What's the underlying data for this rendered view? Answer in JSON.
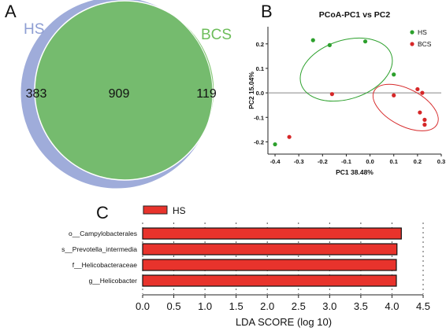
{
  "panels": {
    "a": {
      "letter": "A"
    },
    "b": {
      "letter": "B"
    },
    "c": {
      "letter": "C"
    }
  },
  "chart_data": [
    {
      "type": "venn",
      "sets": [
        {
          "name": "HS",
          "color": "#8e9ed3"
        },
        {
          "name": "BCS",
          "color": "#6dbd5a"
        }
      ],
      "regions": {
        "HS_only": 383,
        "both": 909,
        "BCS_only": 119
      }
    },
    {
      "type": "scatter",
      "title": "PCoA-PC1 vs PC2",
      "xlabel": "PC1 38.48%",
      "ylabel": "PC2 15.04%",
      "xlim": [
        -0.43,
        0.3
      ],
      "ylim": [
        -0.25,
        0.27
      ],
      "xticks": [
        -0.4,
        -0.3,
        -0.2,
        -0.1,
        0.0,
        0.1,
        0.2,
        0.3
      ],
      "xtick_labels": [
        "-0.4",
        "-0.3",
        "-0.2",
        "-0.1",
        "0.0",
        "0.1",
        "0.2",
        "0.3"
      ],
      "yticks": [
        0.2,
        0.1,
        0.0,
        -0.1,
        -0.2
      ],
      "ytick_labels": [
        "0.2",
        "0.1",
        "0.0",
        "-0.1",
        "-0.2"
      ],
      "legend_position": "top-right",
      "zero_line": true,
      "series": [
        {
          "name": "HS",
          "color": "#2ca02c",
          "x": [
            -0.4,
            -0.24,
            -0.17,
            -0.02,
            0.1
          ],
          "y": [
            -0.21,
            0.215,
            0.195,
            0.21,
            0.075
          ]
        },
        {
          "name": "BCS",
          "color": "#d62728",
          "x": [
            -0.34,
            -0.16,
            0.1,
            0.2,
            0.22,
            0.21,
            0.23,
            0.23
          ],
          "y": [
            -0.18,
            -0.005,
            -0.01,
            0.015,
            0.0,
            -0.08,
            -0.11,
            -0.13
          ]
        }
      ],
      "ellipses": [
        {
          "series": "HS",
          "cx": -0.1,
          "cy": 0.095,
          "rx": 0.2,
          "ry": 0.12,
          "rotation_deg": 18
        },
        {
          "series": "BCS",
          "cx": 0.15,
          "cy": -0.06,
          "rx": 0.15,
          "ry": 0.075,
          "rotation_deg": -28
        }
      ]
    },
    {
      "type": "bar",
      "orientation": "horizontal",
      "xlabel": "LDA SCORE (log 10)",
      "xlim": [
        0,
        4.5
      ],
      "xticks": [
        0.0,
        0.5,
        1.0,
        1.5,
        2.0,
        2.5,
        3.0,
        3.5,
        4.0,
        4.5
      ],
      "xtick_labels": [
        "0.0",
        "0.5",
        "1.0",
        "1.5",
        "2.0",
        "2.5",
        "3.0",
        "3.5",
        "4.0",
        "4.5"
      ],
      "legend": [
        {
          "name": "HS",
          "color": "#e8332c"
        }
      ],
      "categories": [
        "o__Campylobacterales",
        "s__Prevotella_intermedia",
        "f__Helicobacteraceae",
        "g__Helicobacter"
      ],
      "values": [
        4.15,
        4.08,
        4.07,
        4.07
      ],
      "color": "#e8332c"
    }
  ]
}
